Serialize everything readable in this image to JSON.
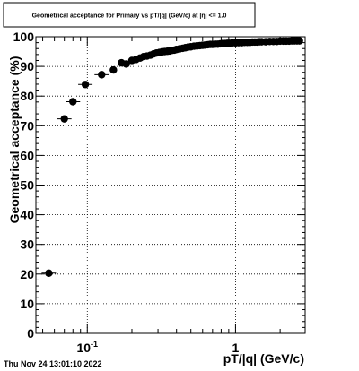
{
  "chart_data": {
    "type": "scatter",
    "title": "Geometrical acceptance for Primary vs pT/|q| (GeV/c) at |η| <= 1.0",
    "xlabel": "pT/|q| (GeV/c)",
    "ylabel": "Geometrical acceptance (%)",
    "xscale": "log",
    "xlim": [
      0.045,
      2.95
    ],
    "ylim": [
      0,
      100
    ],
    "grid": true,
    "x_ticks": [
      {
        "value": 0.1,
        "base": "10",
        "exp": "-1"
      },
      {
        "value": 1,
        "label": "1"
      }
    ],
    "y_ticks": [
      "0",
      "10",
      "20",
      "30",
      "40",
      "50",
      "60",
      "70",
      "80",
      "90",
      "100"
    ],
    "series": [
      {
        "x": [
          0.055,
          0.07,
          0.08,
          0.097,
          0.125,
          0.15,
          0.17,
          0.183,
          0.2,
          0.213,
          0.227,
          0.24,
          0.253,
          0.267,
          0.28,
          0.293,
          0.307,
          0.32,
          0.333,
          0.347,
          0.36,
          0.373,
          0.387,
          0.4,
          0.42,
          0.44,
          0.46,
          0.48,
          0.5,
          0.525,
          0.55,
          0.575,
          0.6,
          0.625,
          0.65,
          0.675,
          0.7,
          0.73,
          0.76,
          0.79,
          0.82,
          0.85,
          0.88,
          0.91,
          0.95,
          1.0,
          1.05,
          1.1,
          1.15,
          1.2,
          1.25,
          1.3,
          1.35,
          1.4,
          1.45,
          1.5,
          1.6,
          1.7,
          1.8,
          1.9,
          2.0,
          2.1,
          2.2,
          2.3,
          2.4,
          2.5,
          2.6,
          2.7
        ],
        "y": [
          20.3,
          72.3,
          78.1,
          83.9,
          87.2,
          88.8,
          91.2,
          90.8,
          92.0,
          92.3,
          92.8,
          93.3,
          93.5,
          93.8,
          94.2,
          94.5,
          94.7,
          94.9,
          95.0,
          95.1,
          95.2,
          95.4,
          95.5,
          95.7,
          95.9,
          96.1,
          96.3,
          96.5,
          96.6,
          96.8,
          96.9,
          97.0,
          97.1,
          97.2,
          97.3,
          97.4,
          97.4,
          97.5,
          97.5,
          97.6,
          97.7,
          97.7,
          97.8,
          97.8,
          97.9,
          97.9,
          98.0,
          98.0,
          98.1,
          98.1,
          98.1,
          98.2,
          98.2,
          98.2,
          98.3,
          98.3,
          98.3,
          98.4,
          98.4,
          98.4,
          98.5,
          98.5,
          98.5,
          98.5,
          98.6,
          98.6,
          98.6,
          98.6
        ]
      }
    ]
  },
  "timestamp": "Thu Nov 24 13:01:10 2022"
}
